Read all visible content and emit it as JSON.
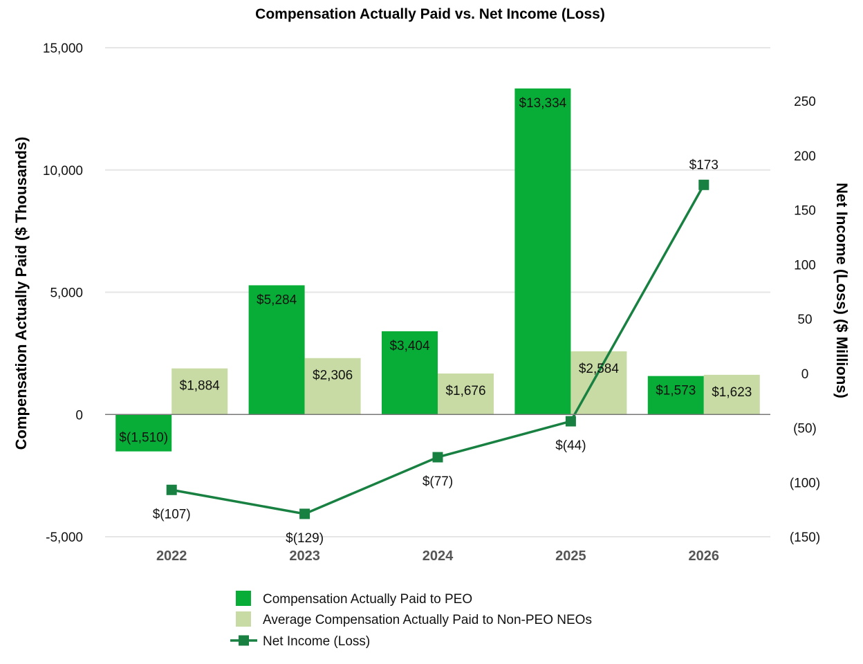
{
  "chart_data": {
    "type": "bar",
    "title": "Compensation Actually Paid vs. Net Income (Loss)",
    "categories": [
      "2022",
      "2023",
      "2024",
      "2025",
      "2026"
    ],
    "ylabel": "Compensation Actually Paid ($ Thousands)",
    "y2label": "Net Income (Loss) ($ Millions)",
    "ylim": [
      -5000,
      15000
    ],
    "y2lim": [
      -150,
      250
    ],
    "y_ticks": [
      {
        "value": 15000,
        "label": "15,000"
      },
      {
        "value": 10000,
        "label": "10,000"
      },
      {
        "value": 5000,
        "label": "5,000"
      },
      {
        "value": 0,
        "label": "0"
      },
      {
        "value": -5000,
        "label": "-5,000"
      }
    ],
    "y2_ticks": [
      {
        "value": 250,
        "label": "250"
      },
      {
        "value": 200,
        "label": "200"
      },
      {
        "value": 150,
        "label": "150"
      },
      {
        "value": 100,
        "label": "100"
      },
      {
        "value": 50,
        "label": "50"
      },
      {
        "value": 0,
        "label": "0"
      },
      {
        "value": -50,
        "label": "(50)"
      },
      {
        "value": -100,
        "label": "(100)"
      },
      {
        "value": -150,
        "label": "(150)"
      }
    ],
    "grid": true,
    "legend_position": "bottom",
    "series": [
      {
        "name": "Compensation Actually Paid to PEO",
        "type": "bar",
        "axis": "left",
        "color": "#07ad36",
        "values": [
          -1510,
          5284,
          3404,
          13334,
          1573
        ],
        "labels": [
          "$(1,510)",
          "$5,284",
          "$3,404",
          "$13,334",
          "$1,573"
        ]
      },
      {
        "name": "Average Compensation Actually Paid to Non-PEO NEOs",
        "type": "bar",
        "axis": "left",
        "color": "#c8dba4",
        "values": [
          1884,
          2306,
          1676,
          2584,
          1623
        ],
        "labels": [
          "$1,884",
          "$2,306",
          "$1,676",
          "$2,584",
          "$1,623"
        ]
      },
      {
        "name": "Net Income (Loss)",
        "type": "line",
        "axis": "right",
        "color": "#188142",
        "values": [
          -107,
          -129,
          -77,
          -44,
          173
        ],
        "labels": [
          "$(107)",
          "$(129)",
          "$(77)",
          "$(44)",
          "$173"
        ]
      }
    ]
  }
}
